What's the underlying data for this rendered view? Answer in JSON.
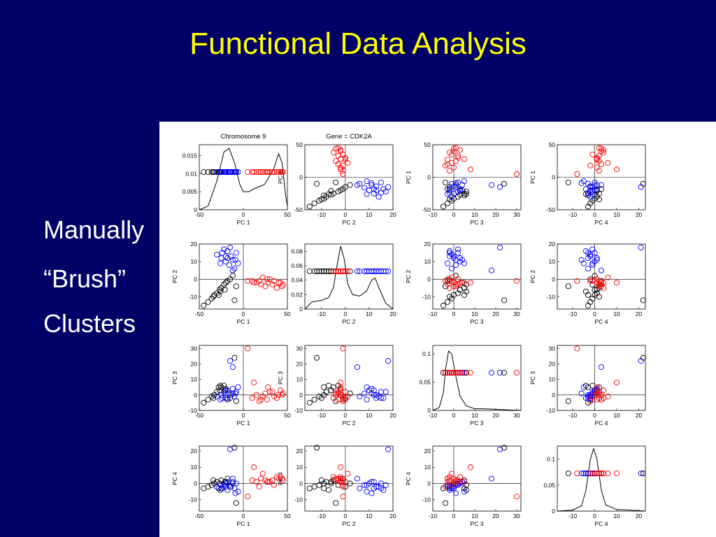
{
  "slide": {
    "title": "Functional Data Analysis",
    "bullets": [
      "Manually",
      "“Brush”",
      "Clusters"
    ]
  },
  "colors": {
    "background": "#000066",
    "title": "#ffff00",
    "text": "#ffffff",
    "group_black": "#000000",
    "group_blue": "#0000ff",
    "group_red": "#ff0000"
  },
  "chart_data": {
    "type": "scatter",
    "layout": "4x4 scatterplot matrix with density curves on the diagonal",
    "column_titles": [
      "Chromosome 9",
      "Gene = CDK2A",
      "",
      ""
    ],
    "variables": [
      "PC 1",
      "PC 2",
      "PC 3",
      "PC 4"
    ],
    "axis_ranges": {
      "PC 1": [
        -50,
        50
      ],
      "PC 2": [
        -17,
        20
      ],
      "PC 3": [
        -10,
        32
      ],
      "PC 4": [
        -17,
        23
      ]
    },
    "axis_ticks": {
      "PC 1": [
        "-50",
        "0",
        "50"
      ],
      "PC 2": [
        "-10",
        "0",
        "10",
        "20"
      ],
      "PC 3": [
        "-10",
        "0",
        "10",
        "20",
        "30"
      ],
      "PC 4": [
        "-10",
        "0",
        "10",
        "20"
      ]
    },
    "vertical_ticks": {
      "PC 1": [
        "-50",
        "0",
        "50"
      ],
      "PC 2": [
        "-10",
        "0",
        "10",
        "20"
      ],
      "PC 3": [
        "-10",
        "0",
        "10",
        "20",
        "30"
      ],
      "PC 4": [
        "-10",
        "0",
        "10",
        "20"
      ]
    },
    "density_ranges": {
      "PC 1": [
        0,
        0.018
      ],
      "PC 2": [
        0,
        0.09
      ],
      "PC 3": [
        0,
        0.115
      ],
      "PC 4": [
        0,
        0.125
      ]
    },
    "density_ticks": {
      "PC 1": [
        "0",
        "0.005",
        "0.01",
        "0.015"
      ],
      "PC 2": [
        "0",
        "0.02",
        "0.04",
        "0.06",
        "0.08"
      ],
      "PC 3": [
        "0",
        "0.05",
        "0.1"
      ],
      "PC 4": [
        "0",
        "0.05",
        "0.1"
      ]
    },
    "density_curves": {
      "PC 1": [
        [
          -50,
          0
        ],
        [
          -40,
          0.001
        ],
        [
          -30,
          0.008
        ],
        [
          -22,
          0.016
        ],
        [
          -16,
          0.017
        ],
        [
          -10,
          0.013
        ],
        [
          -4,
          0.007
        ],
        [
          0,
          0.005
        ],
        [
          6,
          0.005
        ],
        [
          14,
          0.006
        ],
        [
          24,
          0.007
        ],
        [
          34,
          0.011
        ],
        [
          40,
          0.0155
        ],
        [
          44,
          0.013
        ],
        [
          48,
          0.004
        ],
        [
          50,
          0.001
        ]
      ],
      "PC 2": [
        [
          -17,
          0
        ],
        [
          -14,
          0.01
        ],
        [
          -10,
          0.012
        ],
        [
          -7,
          0.016
        ],
        [
          -5,
          0.03
        ],
        [
          -3.5,
          0.06
        ],
        [
          -2,
          0.087
        ],
        [
          -0.5,
          0.07
        ],
        [
          1,
          0.035
        ],
        [
          3,
          0.02
        ],
        [
          6,
          0.018
        ],
        [
          9,
          0.025
        ],
        [
          11,
          0.04
        ],
        [
          12.5,
          0.043
        ],
        [
          14,
          0.03
        ],
        [
          17,
          0.008
        ],
        [
          20,
          0
        ]
      ],
      "PC 3": [
        [
          -10,
          0
        ],
        [
          -7,
          0.005
        ],
        [
          -5,
          0.03
        ],
        [
          -4,
          0.07
        ],
        [
          -2.5,
          0.105
        ],
        [
          -1,
          0.1
        ],
        [
          1,
          0.06
        ],
        [
          3,
          0.025
        ],
        [
          6,
          0.008
        ],
        [
          10,
          0.003
        ],
        [
          14,
          0.003
        ],
        [
          20,
          0.002
        ],
        [
          26,
          0.001
        ],
        [
          32,
          0
        ]
      ],
      "PC 4": [
        [
          -17,
          0
        ],
        [
          -10,
          0.002
        ],
        [
          -6,
          0.01
        ],
        [
          -4,
          0.04
        ],
        [
          -2,
          0.1
        ],
        [
          -0.5,
          0.12
        ],
        [
          1,
          0.1
        ],
        [
          3,
          0.04
        ],
        [
          5,
          0.012
        ],
        [
          10,
          0.003
        ],
        [
          16,
          0.002
        ],
        [
          23,
          0
        ]
      ]
    },
    "series": [
      {
        "name": "",
        "color": "#000000",
        "points": [
          [
            -45,
            -15,
            -5,
            -3
          ],
          [
            -40,
            -13,
            -3,
            -2
          ],
          [
            -36,
            -11,
            -1,
            -1
          ],
          [
            -33,
            -9,
            0,
            0
          ],
          [
            -30,
            -8,
            2,
            1
          ],
          [
            -27,
            -6,
            3,
            0
          ],
          [
            -25,
            -5,
            5,
            2
          ],
          [
            -22,
            -3,
            6,
            -1
          ],
          [
            -20,
            -2,
            4,
            1
          ],
          [
            -18,
            -1,
            -3,
            3
          ],
          [
            -15,
            0,
            -2,
            -2
          ],
          [
            -12,
            2,
            1,
            0
          ],
          [
            -10,
            -12,
            24,
            22
          ],
          [
            -8,
            -4,
            -4,
            -12
          ],
          [
            -26,
            -7,
            6,
            -4
          ],
          [
            -34,
            -10,
            -2,
            2
          ],
          [
            -28,
            -9,
            5,
            -3
          ],
          [
            -21,
            -6,
            3,
            1
          ]
        ]
      },
      {
        "name": "",
        "color": "#0000ff",
        "points": [
          [
            -30,
            14,
            -1,
            -2
          ],
          [
            -25,
            12,
            0,
            -3
          ],
          [
            -22,
            17,
            2,
            -1
          ],
          [
            -20,
            10,
            3,
            0
          ],
          [
            -18,
            16,
            -2,
            -4
          ],
          [
            -16,
            8,
            1,
            -1
          ],
          [
            -14,
            13,
            0,
            -2
          ],
          [
            -12,
            11,
            4,
            1
          ],
          [
            -10,
            6,
            -1,
            -3
          ],
          [
            -8,
            15,
            2,
            0
          ],
          [
            -26,
            9,
            -3,
            -1
          ],
          [
            -15,
            18,
            22,
            21
          ],
          [
            -12,
            5,
            18,
            3
          ],
          [
            -20,
            13,
            -2,
            -2
          ],
          [
            -6,
            9,
            5,
            -5
          ],
          [
            -18,
            12,
            3,
            1
          ],
          [
            -24,
            15,
            -2,
            -3
          ],
          [
            -9,
            11,
            1,
            -6
          ]
        ]
      },
      {
        "name": "",
        "color": "#ff0000",
        "points": [
          [
            10,
            -1,
            -2,
            2
          ],
          [
            15,
            -2,
            0,
            1
          ],
          [
            20,
            -3,
            -3,
            3
          ],
          [
            25,
            -4,
            1,
            2
          ],
          [
            30,
            0,
            2,
            1
          ],
          [
            35,
            -1,
            -1,
            -1
          ],
          [
            40,
            -2,
            0,
            3
          ],
          [
            45,
            -3,
            1,
            2
          ],
          [
            18,
            -1,
            -4,
            -2
          ],
          [
            28,
            -2,
            5,
            1
          ],
          [
            38,
            -5,
            -2,
            4
          ],
          [
            44,
            -4,
            0,
            3
          ],
          [
            22,
            1,
            -1,
            6
          ],
          [
            33,
            -3,
            2,
            2
          ],
          [
            12,
            -2,
            8,
            10
          ],
          [
            5,
            -1,
            30,
            -8
          ],
          [
            27,
            0,
            -3,
            1
          ],
          [
            42,
            -2,
            3,
            4
          ]
        ]
      }
    ]
  }
}
